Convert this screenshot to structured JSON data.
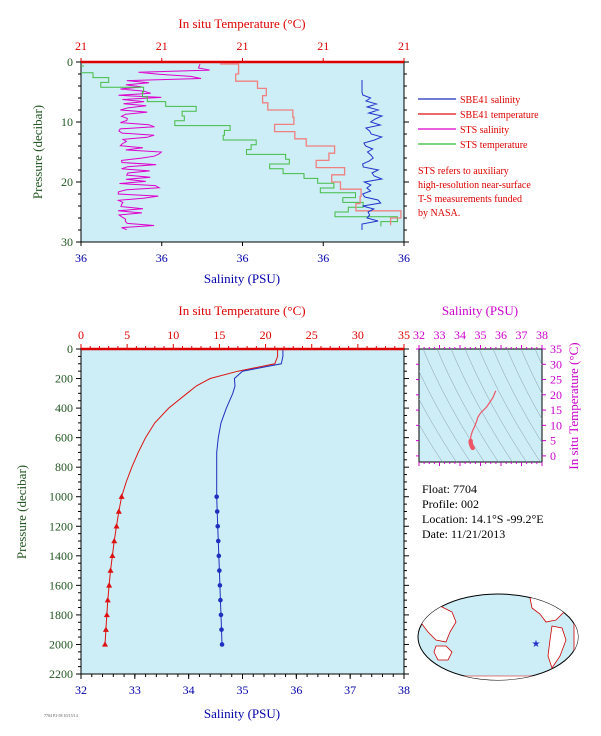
{
  "chart_data": [
    {
      "id": "near_surface",
      "type": "line",
      "top_axis_label": "In situ Temperature (°C)",
      "top_ticks": [
        "21",
        "21",
        "21",
        "21",
        "21"
      ],
      "bottom_axis_label": "Salinity (PSU)",
      "bottom_ticks": [
        "36",
        "36",
        "36",
        "36",
        "36"
      ],
      "ylabel": "Pressure (decibar)",
      "y_ticks": [
        "0",
        "10",
        "20",
        "30"
      ],
      "ylim": [
        0,
        30
      ],
      "legend": {
        "placement": "right",
        "entries": [
          {
            "label": "SBE41 salinity",
            "color": "#1f2fbf"
          },
          {
            "label": "SBE41 temperature",
            "color": "#dd1111"
          },
          {
            "label": "STS salinity",
            "color": "#dd00cc"
          },
          {
            "label": "STS temperature",
            "color": "#33bb33"
          }
        ]
      },
      "note_lines": [
        "STS refers to auxiliary",
        "high-resolution near-surface",
        "T-S measurements funded",
        "by NASA."
      ]
    },
    {
      "id": "profile",
      "type": "line",
      "top_axis_label": "In situ Temperature (°C)",
      "top_ticks": [
        "0",
        "5",
        "10",
        "15",
        "20",
        "25",
        "30",
        "35"
      ],
      "xlim_temp": [
        0,
        35
      ],
      "bottom_axis_label": "Salinity (PSU)",
      "bottom_ticks": [
        "32",
        "33",
        "34",
        "35",
        "36",
        "37",
        "38"
      ],
      "xlim_sal": [
        32,
        38
      ],
      "ylabel": "Pressure (decibar)",
      "y_ticks": [
        "0",
        "200",
        "400",
        "600",
        "800",
        "1000",
        "1200",
        "1400",
        "1600",
        "1800",
        "2000",
        "2200"
      ],
      "ylim": [
        0,
        2200
      ],
      "temperature": {
        "color": "#dd1111",
        "p": [
          0,
          50,
          100,
          150,
          200,
          250,
          300,
          400,
          500,
          600,
          700,
          800,
          900,
          1000,
          1100,
          1200,
          1300,
          1400,
          1500,
          1600,
          1700,
          1800,
          1900,
          2000
        ],
        "t": [
          21.3,
          21.3,
          21.0,
          17.0,
          14.0,
          12.5,
          11.5,
          9.5,
          8.0,
          7.0,
          6.2,
          5.5,
          4.9,
          4.4,
          4.1,
          3.85,
          3.6,
          3.4,
          3.2,
          3.05,
          2.9,
          2.8,
          2.7,
          2.6
        ],
        "markers_from_p": 1000
      },
      "salinity": {
        "color": "#1f2fbf",
        "p": [
          0,
          50,
          100,
          150,
          200,
          250,
          300,
          400,
          500,
          600,
          700,
          800,
          900,
          1000,
          1100,
          1200,
          1300,
          1400,
          1500,
          1600,
          1700,
          1800,
          1900,
          2000
        ],
        "s": [
          35.75,
          35.75,
          35.72,
          35.0,
          34.85,
          34.86,
          34.82,
          34.7,
          34.6,
          34.55,
          34.52,
          34.52,
          34.52,
          34.52,
          34.53,
          34.54,
          34.55,
          34.56,
          34.57,
          34.58,
          34.59,
          34.6,
          34.61,
          34.62
        ],
        "markers_from_p": 1000
      }
    },
    {
      "id": "ts_diagram",
      "type": "scatter",
      "top_axis_label": "Salinity (PSU)",
      "top_ticks": [
        "32",
        "33",
        "34",
        "35",
        "36",
        "37",
        "38"
      ],
      "xlim": [
        32,
        38
      ],
      "right_axis_label": "In situ Temperature (°C)",
      "right_ticks": [
        "0",
        "5",
        "10",
        "15",
        "20",
        "25",
        "30",
        "35"
      ],
      "ylim": [
        -2,
        35
      ],
      "color": "#ee5566",
      "points": [
        [
          35.75,
          21.3
        ],
        [
          35.72,
          21.0
        ],
        [
          35.6,
          19.0
        ],
        [
          35.3,
          16.0
        ],
        [
          35.0,
          14.0
        ],
        [
          34.86,
          12.5
        ],
        [
          34.82,
          11.5
        ],
        [
          34.7,
          9.5
        ],
        [
          34.6,
          8.0
        ],
        [
          34.55,
          7.0
        ],
        [
          34.52,
          6.2
        ],
        [
          34.52,
          5.5
        ],
        [
          34.52,
          4.9
        ],
        [
          34.52,
          4.4
        ],
        [
          34.53,
          4.1
        ],
        [
          34.55,
          3.6
        ],
        [
          34.57,
          3.2
        ],
        [
          34.6,
          2.8
        ],
        [
          34.62,
          2.6
        ]
      ]
    }
  ],
  "float_info": {
    "float": "Float:  7704",
    "profile": "Profile:  002",
    "location": "Location:  14.1°S  -99.2°E",
    "date": "Date:  11/21/2013"
  },
  "map": {
    "marker_label": "float position",
    "marker_color": "#2233cc"
  },
  "footer_text": "7704 P2-58 10/15/14"
}
